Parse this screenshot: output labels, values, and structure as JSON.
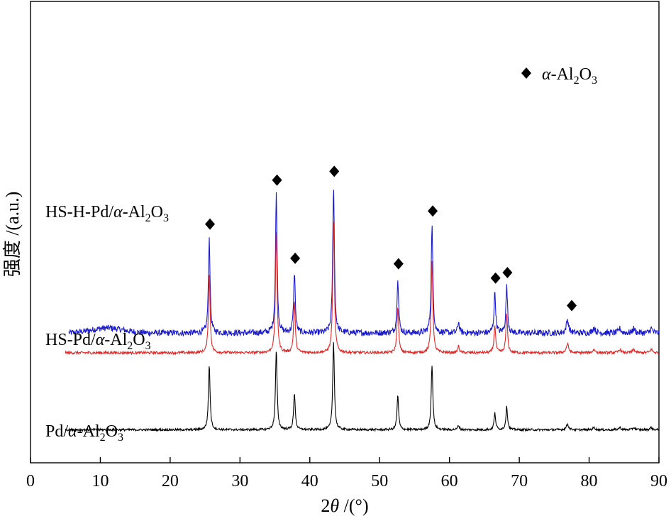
{
  "chart_data": {
    "type": "line",
    "xlabel": "2θ /(°)",
    "ylabel": "强度 /(a.u.)",
    "xlim": [
      0,
      90
    ],
    "x_ticks": [
      0,
      10,
      20,
      30,
      40,
      50,
      60,
      70,
      80,
      90
    ],
    "x_tick_labels": [
      "0",
      "10",
      "20",
      "30",
      "40",
      "50",
      "60",
      "70",
      "80",
      "90"
    ],
    "grid": false,
    "y_ticks_shown": false,
    "legend": {
      "marker": "diamond",
      "marker_color": "#000000",
      "label": "α-Al2O3",
      "placement": "top-right"
    },
    "peak_positions_2theta": [
      25.6,
      35.2,
      37.8,
      43.4,
      52.6,
      57.5,
      61.3,
      66.5,
      68.2,
      76.9,
      80.7,
      84.4,
      86.4,
      88.9
    ],
    "series": [
      {
        "name": "HS-H-Pd/α-Al2O3",
        "label_parts": [
          "HS-H-Pd/",
          "α",
          "-Al",
          "2",
          "O",
          "3"
        ],
        "color": "#1a1acc",
        "x_range": [
          5.5,
          90
        ],
        "baseline": 0.18,
        "peak_heights": [
          0.86,
          1.26,
          0.55,
          1.34,
          0.5,
          0.98,
          0.1,
          0.37,
          0.42,
          0.12,
          0.05,
          0.04,
          0.04,
          0.04
        ],
        "diamond_marked_peaks": [
          25.6,
          35.2,
          37.8,
          43.4,
          52.6,
          57.5,
          66.5,
          68.2,
          76.9
        ]
      },
      {
        "name": "HS-Pd/α-Al2O3",
        "label_parts": [
          "HS-Pd/",
          "α",
          "-Al",
          "2",
          "O",
          "3"
        ],
        "color": "#e02828",
        "x_range": [
          5,
          90
        ],
        "baseline": 0.0,
        "peak_heights": [
          0.72,
          1.12,
          0.46,
          1.2,
          0.42,
          0.84,
          0.06,
          0.25,
          0.35,
          0.08,
          0.03,
          0.03,
          0.03,
          0.03
        ],
        "diamond_marked_peaks": []
      },
      {
        "name": "Pd/α-Al2O3",
        "label_parts": [
          "Pd/",
          "α",
          "-Al",
          "2",
          "O",
          "3"
        ],
        "color": "#000000",
        "x_range": [
          5,
          90
        ],
        "baseline": -0.7,
        "peak_heights": [
          0.59,
          0.72,
          0.33,
          0.8,
          0.31,
          0.59,
          0.04,
          0.15,
          0.21,
          0.05,
          0.02,
          0.02,
          0.02,
          0.02
        ],
        "diamond_marked_peaks": []
      }
    ]
  }
}
